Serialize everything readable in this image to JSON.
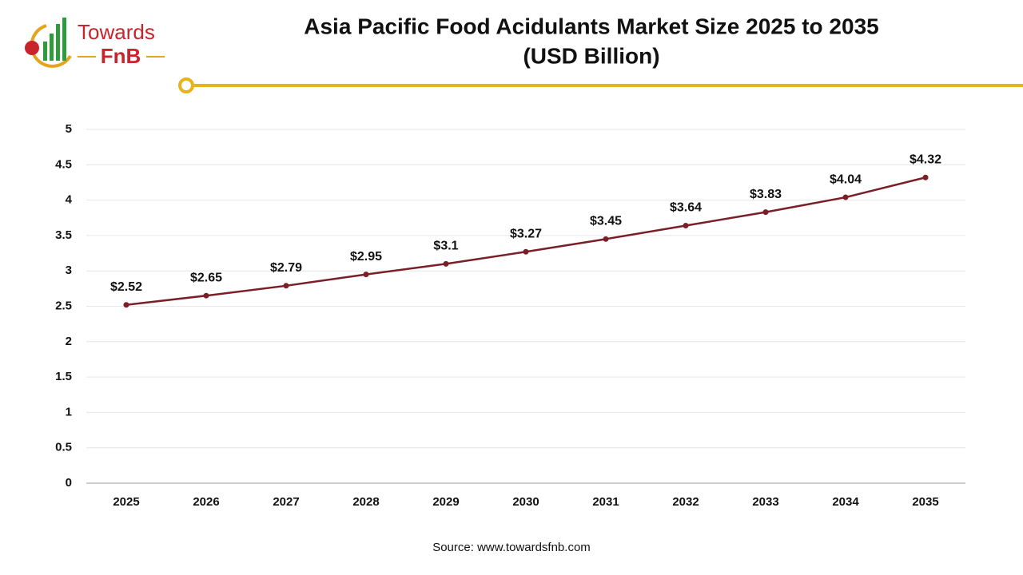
{
  "logo": {
    "line1": "Towards",
    "line2": "FnB"
  },
  "chart_data": {
    "type": "line",
    "title": "Asia Pacific Food Acidulants Market Size 2025 to 2035",
    "subtitle": "(USD Billion)",
    "source": "Source: www.towardsfnb.com",
    "categories": [
      "2025",
      "2026",
      "2027",
      "2028",
      "2029",
      "2030",
      "2031",
      "2032",
      "2033",
      "2034",
      "2035"
    ],
    "values": [
      2.52,
      2.65,
      2.79,
      2.95,
      3.1,
      3.27,
      3.45,
      3.64,
      3.83,
      4.04,
      4.32
    ],
    "value_labels": [
      "$2.52",
      "$2.65",
      "$2.79",
      "$2.95",
      "$3.1",
      "$3.27",
      "$3.45",
      "$3.64",
      "$3.83",
      "$4.04",
      "$4.32"
    ],
    "color": "#7a1f27",
    "ylim": [
      0,
      5
    ],
    "yticks": [
      0,
      0.5,
      1,
      1.5,
      2,
      2.5,
      3,
      3.5,
      4,
      4.5,
      5
    ],
    "grid": true
  }
}
